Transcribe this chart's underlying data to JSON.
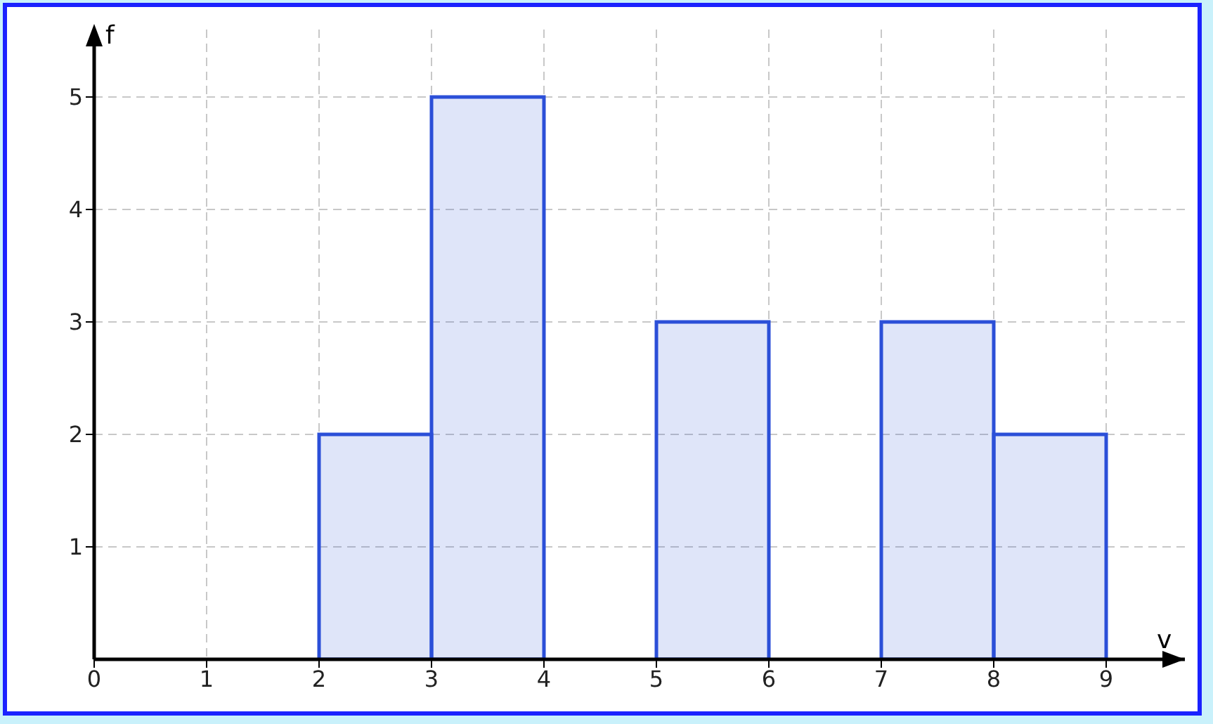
{
  "chart_data": {
    "type": "histogram",
    "xlabel": "v",
    "ylabel": "f",
    "bins": [
      2,
      3,
      4,
      5,
      6,
      7,
      8,
      9
    ],
    "values": [
      2,
      5,
      0,
      3,
      0,
      3,
      2
    ],
    "color": "#2b4fd8",
    "xlim": [
      0,
      9.7
    ],
    "xticks": [
      0,
      1,
      2,
      3,
      4,
      5,
      6,
      7,
      8,
      9
    ],
    "ylim": [
      0,
      5.6
    ],
    "yticks": [
      1,
      2,
      3,
      4,
      5
    ],
    "grid": true,
    "legend": false
  }
}
